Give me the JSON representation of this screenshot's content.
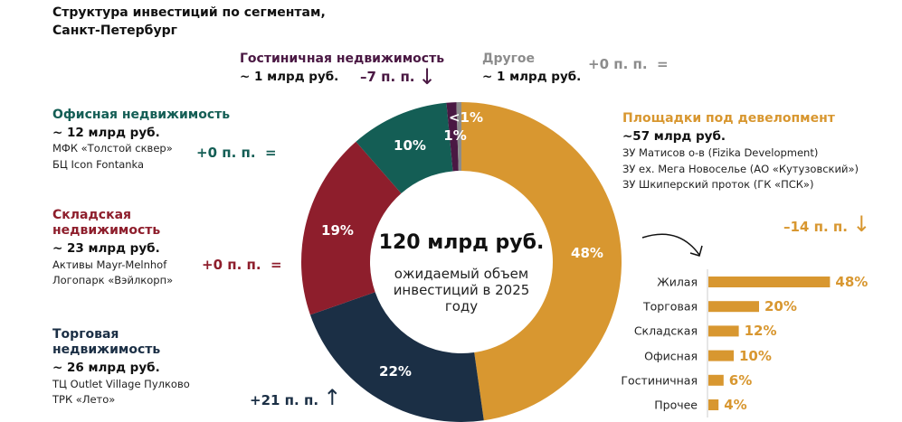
{
  "title": "Структура инвестиций по сегментам, Санкт-Петербург",
  "segments": {
    "office": {
      "name": "Офисная недвижимость",
      "value": "~ 12 млрд руб.",
      "details": [
        "МФК «Толстой сквер»",
        "БЦ Icon Fontanka"
      ],
      "change": "+0 п. п.",
      "change_icon": "=",
      "color": "#145E55"
    },
    "warehouse": {
      "name_line1": "Складская",
      "name_line2": "недвижимость",
      "value": "~ 23 млрд руб.",
      "details": [
        "Активы Mayr-Melnhof",
        "Логопарк «Вэйлкорп»"
      ],
      "change": "+0 п. п.",
      "change_icon": "=",
      "color": "#8E1E2C"
    },
    "retail": {
      "name_line1": "Торговая",
      "name_line2": "недвижимость",
      "value": "~ 26 млрд руб.",
      "details": [
        "ТЦ Outlet Village Пулково",
        "ТРК «Лето»"
      ],
      "change": "+21 п. п.",
      "change_icon": "↑",
      "color": "#1B2F45"
    },
    "hotel": {
      "name": "Гостиничная недвижимость",
      "value": "~ 1 млрд руб.",
      "change": "–7 п. п.",
      "change_icon": "↓",
      "color": "#4A1843"
    },
    "other": {
      "name": "Другое",
      "value": "~ 1 млрд руб.",
      "change": "+0 п. п.",
      "change_icon": "=",
      "color": "#8C8C8C"
    },
    "development": {
      "name": "Площадки под девелопмент",
      "value": "~57 млрд руб.",
      "details": [
        "ЗУ Матисов о-в (Fizika Development)",
        "ЗУ ех. Мега Новоселье (АО «Кутузовский»)",
        "ЗУ Шкиперский проток (ГК «ПСК»)"
      ],
      "change": "–14 п. п.",
      "change_icon": "↓",
      "color": "#D89730"
    }
  },
  "center": {
    "total": "120 млрд руб.",
    "subtitle": "ожидаемый объем инвестиций в 2025 году"
  },
  "chart_data": [
    {
      "type": "pie",
      "donut": true,
      "categories": [
        "Площадки под девелопмент",
        "Торговая недвижимость",
        "Складская недвижимость",
        "Офисная недвижимость",
        "Гостиничная недвижимость",
        "Другое"
      ],
      "values": [
        48,
        22,
        19,
        10,
        1,
        0.5
      ],
      "labels": [
        "48%",
        "22%",
        "19%",
        "10%",
        "1%",
        "<1%"
      ],
      "colors": [
        "#D89730",
        "#1B2F45",
        "#8E1E2C",
        "#145E55",
        "#4A1843",
        "#8C8C8C"
      ]
    },
    {
      "type": "bar",
      "orientation": "horizontal",
      "categories": [
        "Жилая",
        "Торговая",
        "Складская",
        "Офисная",
        "Гостиничная",
        "Прочее"
      ],
      "values": [
        48,
        20,
        12,
        10,
        6,
        4
      ],
      "labels": [
        "48%",
        "20%",
        "12%",
        "10%",
        "6%",
        "4%"
      ],
      "color": "#D89730"
    }
  ]
}
